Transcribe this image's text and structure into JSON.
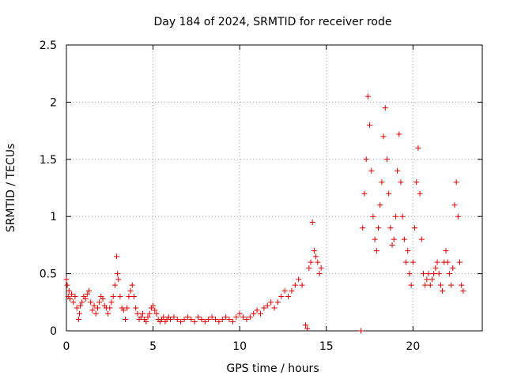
{
  "chart_data": {
    "type": "scatter",
    "title": "Day 184 of 2024, SRMTID for receiver rode",
    "xlabel": "GPS time / hours",
    "ylabel": "SRMTID / TECUs",
    "xlim": [
      0,
      24
    ],
    "ylim": [
      0,
      2.5
    ],
    "xticks": [
      0,
      5,
      10,
      15,
      20
    ],
    "xtick_labels": [
      "0",
      "5",
      "10",
      "15",
      "20"
    ],
    "yticks": [
      0,
      0.5,
      1,
      1.5,
      2,
      2.5
    ],
    "ytick_labels": [
      "0",
      "0.5",
      "1",
      "1.5",
      "2",
      "2.5"
    ],
    "grid": true,
    "marker": "+",
    "color": "#e00000",
    "series": [
      {
        "name": "SRMTID",
        "points": [
          [
            0.0,
            0.45
          ],
          [
            0.05,
            0.4
          ],
          [
            0.1,
            0.3
          ],
          [
            0.15,
            0.35
          ],
          [
            0.2,
            0.28
          ],
          [
            0.3,
            0.32
          ],
          [
            0.4,
            0.25
          ],
          [
            0.5,
            0.3
          ],
          [
            0.6,
            0.2
          ],
          [
            0.7,
            0.1
          ],
          [
            0.75,
            0.15
          ],
          [
            0.8,
            0.22
          ],
          [
            0.9,
            0.25
          ],
          [
            1.0,
            0.3
          ],
          [
            1.1,
            0.28
          ],
          [
            1.2,
            0.32
          ],
          [
            1.3,
            0.35
          ],
          [
            1.4,
            0.25
          ],
          [
            1.5,
            0.18
          ],
          [
            1.6,
            0.22
          ],
          [
            1.7,
            0.15
          ],
          [
            1.8,
            0.2
          ],
          [
            1.9,
            0.25
          ],
          [
            2.0,
            0.3
          ],
          [
            2.1,
            0.28
          ],
          [
            2.2,
            0.22
          ],
          [
            2.3,
            0.2
          ],
          [
            2.4,
            0.15
          ],
          [
            2.5,
            0.2
          ],
          [
            2.6,
            0.25
          ],
          [
            2.7,
            0.3
          ],
          [
            2.8,
            0.4
          ],
          [
            2.9,
            0.65
          ],
          [
            2.95,
            0.5
          ],
          [
            3.0,
            0.45
          ],
          [
            3.1,
            0.3
          ],
          [
            3.2,
            0.2
          ],
          [
            3.3,
            0.18
          ],
          [
            3.4,
            0.1
          ],
          [
            3.5,
            0.2
          ],
          [
            3.6,
            0.3
          ],
          [
            3.7,
            0.35
          ],
          [
            3.8,
            0.4
          ],
          [
            3.9,
            0.3
          ],
          [
            4.0,
            0.2
          ],
          [
            4.1,
            0.15
          ],
          [
            4.2,
            0.1
          ],
          [
            4.3,
            0.12
          ],
          [
            4.4,
            0.15
          ],
          [
            4.5,
            0.1
          ],
          [
            4.6,
            0.08
          ],
          [
            4.7,
            0.12
          ],
          [
            4.8,
            0.15
          ],
          [
            4.9,
            0.2
          ],
          [
            5.0,
            0.22
          ],
          [
            5.1,
            0.18
          ],
          [
            5.2,
            0.15
          ],
          [
            5.3,
            0.1
          ],
          [
            5.4,
            0.08
          ],
          [
            5.5,
            0.1
          ],
          [
            5.6,
            0.12
          ],
          [
            5.7,
            0.08
          ],
          [
            5.8,
            0.1
          ],
          [
            5.9,
            0.12
          ],
          [
            6.0,
            0.1
          ],
          [
            6.2,
            0.12
          ],
          [
            6.4,
            0.1
          ],
          [
            6.6,
            0.08
          ],
          [
            6.8,
            0.1
          ],
          [
            7.0,
            0.12
          ],
          [
            7.2,
            0.1
          ],
          [
            7.4,
            0.08
          ],
          [
            7.6,
            0.12
          ],
          [
            7.8,
            0.1
          ],
          [
            8.0,
            0.08
          ],
          [
            8.2,
            0.1
          ],
          [
            8.4,
            0.12
          ],
          [
            8.6,
            0.1
          ],
          [
            8.8,
            0.08
          ],
          [
            9.0,
            0.1
          ],
          [
            9.2,
            0.12
          ],
          [
            9.4,
            0.1
          ],
          [
            9.6,
            0.08
          ],
          [
            9.8,
            0.12
          ],
          [
            10.0,
            0.15
          ],
          [
            10.2,
            0.12
          ],
          [
            10.4,
            0.1
          ],
          [
            10.6,
            0.12
          ],
          [
            10.8,
            0.15
          ],
          [
            11.0,
            0.18
          ],
          [
            11.2,
            0.15
          ],
          [
            11.4,
            0.2
          ],
          [
            11.6,
            0.22
          ],
          [
            11.8,
            0.25
          ],
          [
            12.0,
            0.2
          ],
          [
            12.2,
            0.25
          ],
          [
            12.4,
            0.3
          ],
          [
            12.6,
            0.35
          ],
          [
            12.8,
            0.3
          ],
          [
            13.0,
            0.35
          ],
          [
            13.2,
            0.4
          ],
          [
            13.4,
            0.45
          ],
          [
            13.6,
            0.4
          ],
          [
            13.8,
            0.05
          ],
          [
            13.9,
            0.02
          ],
          [
            14.0,
            0.55
          ],
          [
            14.1,
            0.6
          ],
          [
            14.2,
            0.95
          ],
          [
            14.3,
            0.7
          ],
          [
            14.4,
            0.65
          ],
          [
            14.5,
            0.6
          ],
          [
            14.6,
            0.5
          ],
          [
            14.7,
            0.55
          ],
          [
            17.0,
            0.0
          ],
          [
            17.1,
            0.9
          ],
          [
            17.2,
            1.2
          ],
          [
            17.3,
            1.5
          ],
          [
            17.4,
            2.05
          ],
          [
            17.5,
            1.8
          ],
          [
            17.6,
            1.4
          ],
          [
            17.7,
            1.0
          ],
          [
            17.8,
            0.8
          ],
          [
            17.9,
            0.7
          ],
          [
            18.0,
            0.9
          ],
          [
            18.1,
            1.1
          ],
          [
            18.2,
            1.3
          ],
          [
            18.3,
            1.7
          ],
          [
            18.4,
            1.95
          ],
          [
            18.5,
            1.5
          ],
          [
            18.6,
            1.2
          ],
          [
            18.7,
            0.9
          ],
          [
            18.8,
            0.75
          ],
          [
            18.9,
            0.8
          ],
          [
            19.0,
            1.0
          ],
          [
            19.1,
            1.4
          ],
          [
            19.2,
            1.72
          ],
          [
            19.3,
            1.3
          ],
          [
            19.4,
            1.0
          ],
          [
            19.5,
            0.8
          ],
          [
            19.6,
            0.6
          ],
          [
            19.7,
            0.7
          ],
          [
            19.8,
            0.5
          ],
          [
            19.9,
            0.4
          ],
          [
            20.0,
            0.6
          ],
          [
            20.1,
            0.9
          ],
          [
            20.2,
            1.3
          ],
          [
            20.3,
            1.6
          ],
          [
            20.4,
            1.2
          ],
          [
            20.5,
            0.8
          ],
          [
            20.6,
            0.5
          ],
          [
            20.7,
            0.4
          ],
          [
            20.8,
            0.45
          ],
          [
            20.9,
            0.5
          ],
          [
            21.0,
            0.4
          ],
          [
            21.1,
            0.45
          ],
          [
            21.2,
            0.5
          ],
          [
            21.3,
            0.55
          ],
          [
            21.4,
            0.6
          ],
          [
            21.5,
            0.5
          ],
          [
            21.6,
            0.4
          ],
          [
            21.7,
            0.35
          ],
          [
            21.8,
            0.6
          ],
          [
            21.9,
            0.7
          ],
          [
            22.0,
            0.6
          ],
          [
            22.1,
            0.5
          ],
          [
            22.2,
            0.4
          ],
          [
            22.3,
            0.55
          ],
          [
            22.4,
            1.1
          ],
          [
            22.5,
            1.3
          ],
          [
            22.6,
            1.0
          ],
          [
            22.7,
            0.6
          ],
          [
            22.8,
            0.4
          ],
          [
            22.9,
            0.35
          ]
        ]
      }
    ]
  }
}
